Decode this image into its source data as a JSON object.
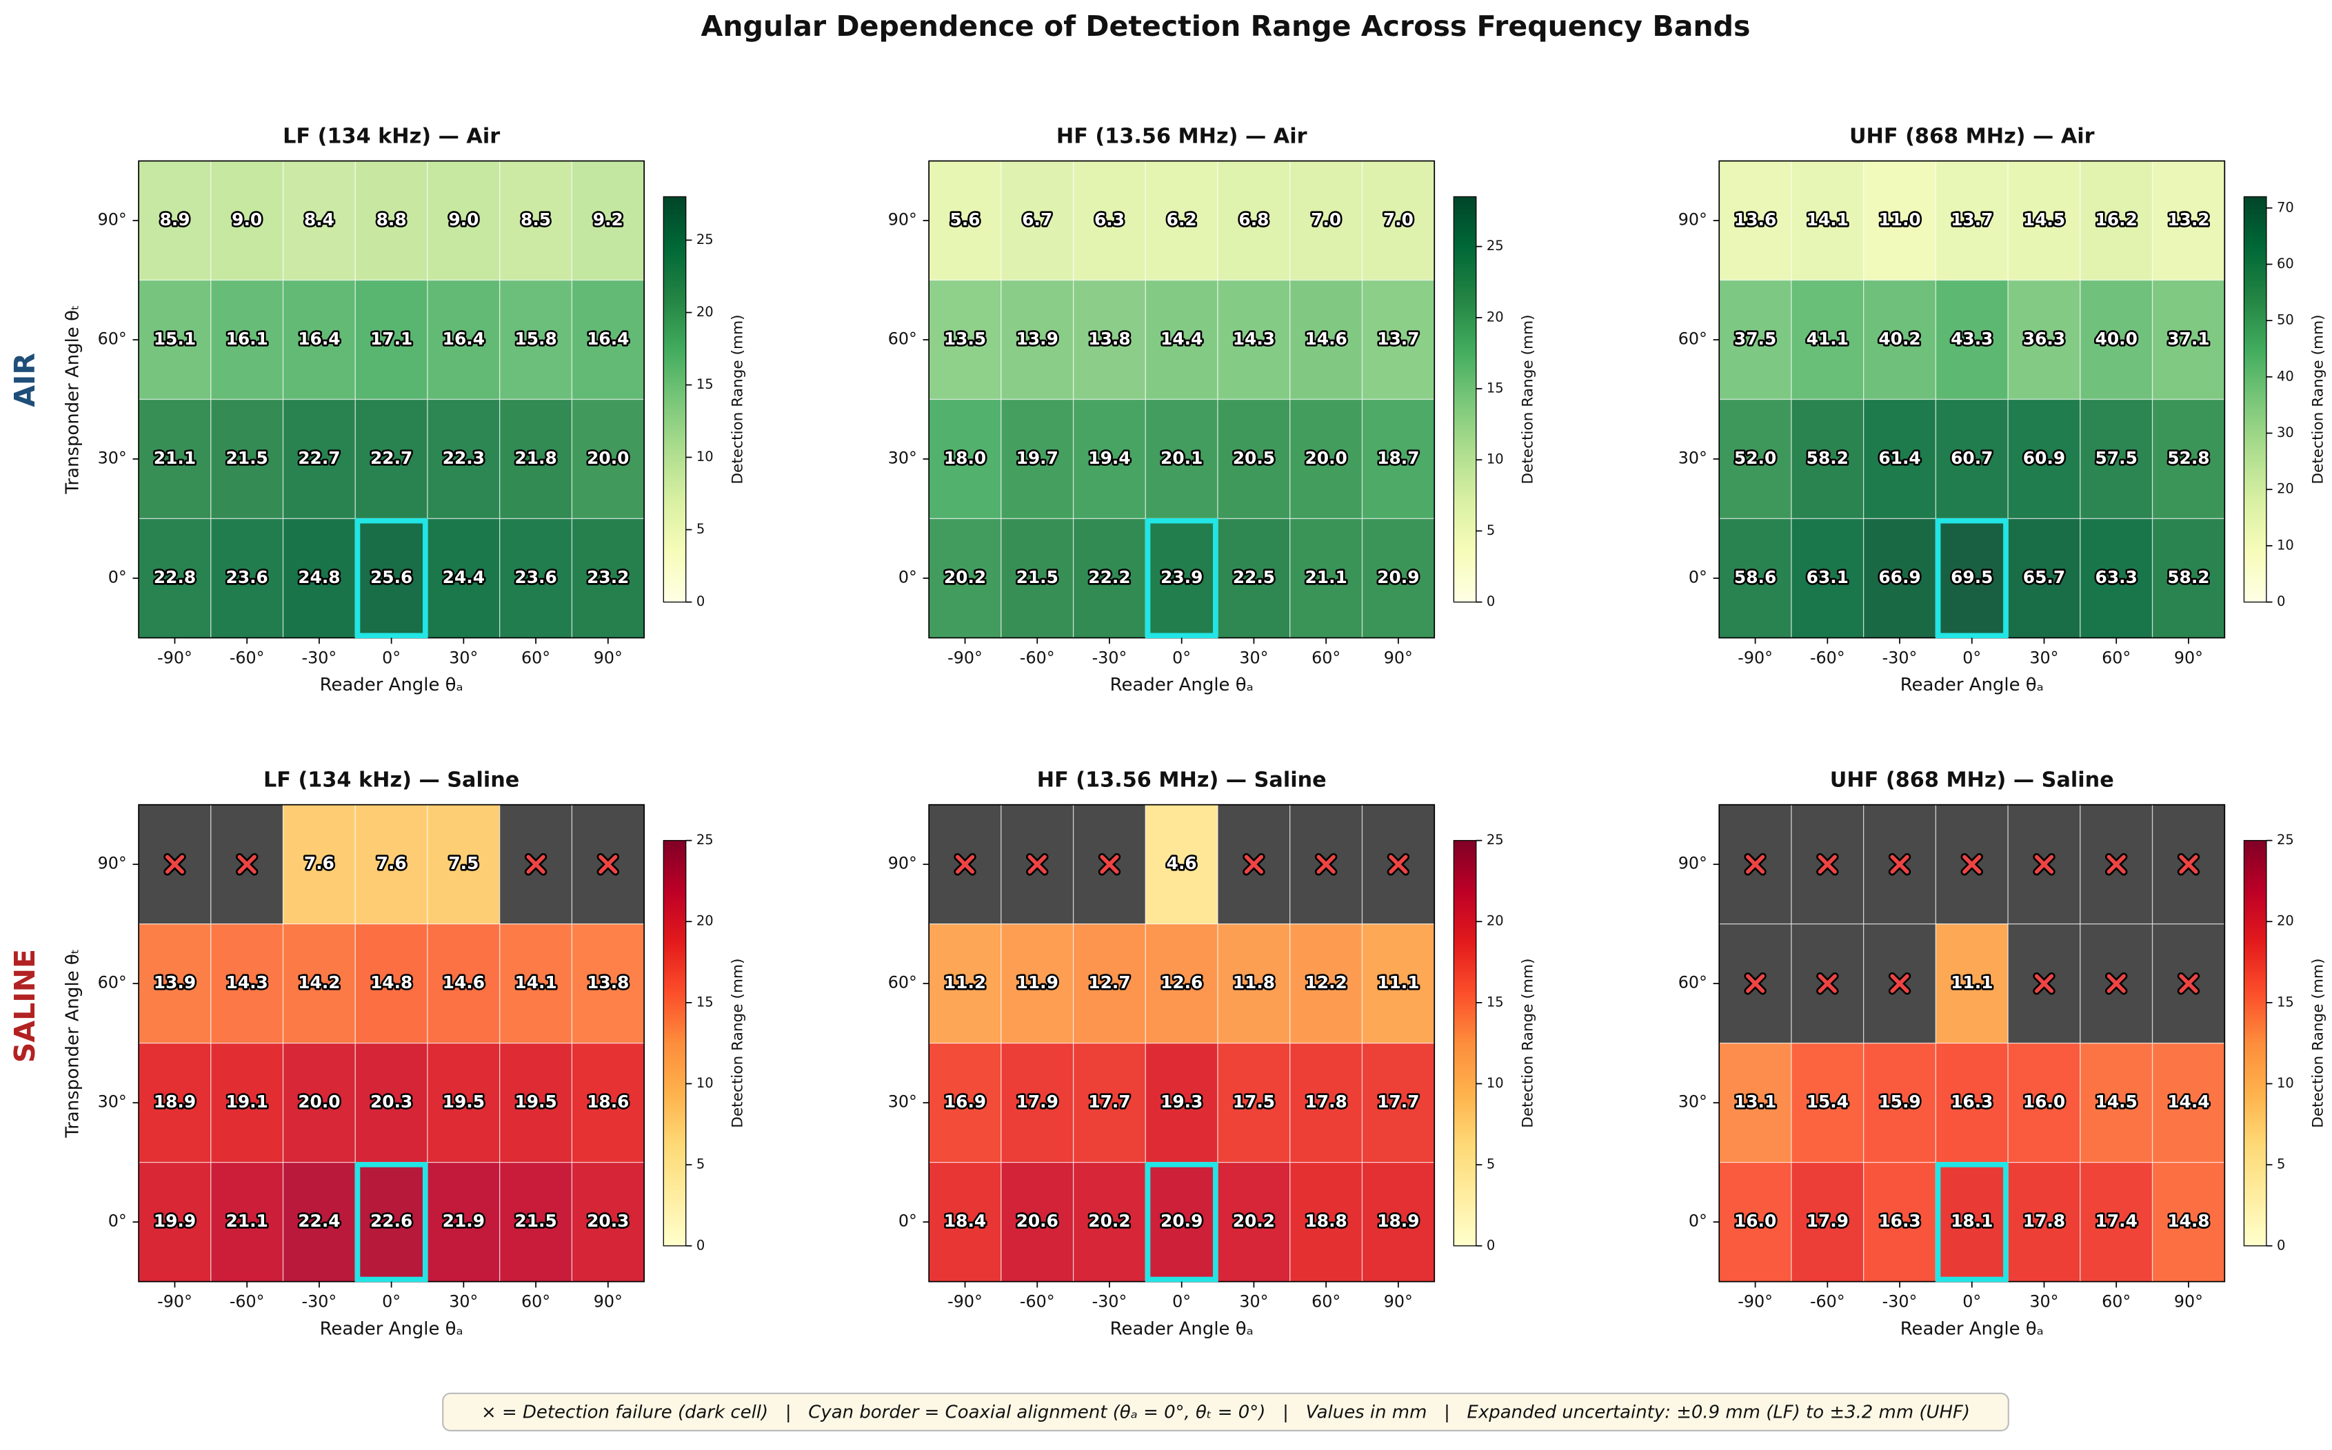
{
  "figure": {
    "title": "Angular Dependence of Detection Range Across Frequency Bands",
    "row_labels": [
      "AIR",
      "SALINE"
    ],
    "footnote": "× = Detection failure (dark cell)   |   Cyan border = Coaxial alignment (θₐ = 0°, θₜ = 0°)   |   Values in mm   |   Expanded uncertainty: ±0.9 mm (LF) to ±3.2 mm (UHF)"
  },
  "chart_data": [
    {
      "type": "heatmap",
      "title": "LF (134 kHz) — Air",
      "xlabel": "Reader Angle θₐ",
      "ylabel": "Transponder Angle θₜ",
      "x": [
        "-90°",
        "-60°",
        "-30°",
        "0°",
        "30°",
        "60°",
        "90°"
      ],
      "y": [
        "90°",
        "60°",
        "30°",
        "0°"
      ],
      "values": [
        [
          8.9,
          9.0,
          8.4,
          8.8,
          9.0,
          8.5,
          9.2
        ],
        [
          15.1,
          16.1,
          16.4,
          17.1,
          16.4,
          15.8,
          16.4
        ],
        [
          21.1,
          21.5,
          22.7,
          22.7,
          22.3,
          21.8,
          20.0
        ],
        [
          22.8,
          23.6,
          24.8,
          25.6,
          24.4,
          23.6,
          23.2
        ]
      ],
      "value_labels": [
        [
          "8.9",
          "9.0",
          "8.4",
          "8.8",
          "9.0",
          "8.5",
          "9.2"
        ],
        [
          "15.1",
          "16.1",
          "16.4",
          "17.1",
          "16.4",
          "15.8",
          "16.4"
        ],
        [
          "21.1",
          "21.5",
          "22.7",
          "22.7",
          "22.3",
          "21.8",
          "20.0"
        ],
        [
          "22.8",
          "23.6",
          "24.8",
          "25.6",
          "24.4",
          "23.6",
          "23.2"
        ]
      ],
      "colormap": "YlGn",
      "colorbar_label": "Detection Range (mm)",
      "clim": [
        0,
        28
      ],
      "cticks": [
        0,
        5,
        10,
        15,
        20,
        25
      ],
      "highlight_cell": [
        3,
        3
      ],
      "highlight_color": "#22e5e5",
      "failure_color": "#4a4a4a"
    },
    {
      "type": "heatmap",
      "title": "HF (13.56 MHz) — Air",
      "xlabel": "Reader Angle θₐ",
      "x": [
        "-90°",
        "-60°",
        "-30°",
        "0°",
        "30°",
        "60°",
        "90°"
      ],
      "y": [
        "90°",
        "60°",
        "30°",
        "0°"
      ],
      "values": [
        [
          5.6,
          6.7,
          6.3,
          6.2,
          6.8,
          7.0,
          7.0
        ],
        [
          13.5,
          13.9,
          13.8,
          14.4,
          14.3,
          14.6,
          13.7
        ],
        [
          18.0,
          19.7,
          19.4,
          20.1,
          20.5,
          20.0,
          18.7
        ],
        [
          20.2,
          21.5,
          22.2,
          23.9,
          22.5,
          21.1,
          20.9
        ]
      ],
      "value_labels": [
        [
          "5.6",
          "6.7",
          "6.3",
          "6.2",
          "6.8",
          "7.0",
          "7.0"
        ],
        [
          "13.5",
          "13.9",
          "13.8",
          "14.4",
          "14.3",
          "14.6",
          "13.7"
        ],
        [
          "18.0",
          "19.7",
          "19.4",
          "20.1",
          "20.5",
          "20.0",
          "18.7"
        ],
        [
          "20.2",
          "21.5",
          "22.2",
          "23.9",
          "22.5",
          "21.1",
          "20.9"
        ]
      ],
      "colormap": "YlGn",
      "colorbar_label": "Detection Range (mm)",
      "clim": [
        0,
        28.5
      ],
      "cticks": [
        0,
        5,
        10,
        15,
        20,
        25
      ],
      "highlight_cell": [
        3,
        3
      ],
      "highlight_color": "#22e5e5",
      "failure_color": "#4a4a4a"
    },
    {
      "type": "heatmap",
      "title": "UHF (868 MHz) — Air",
      "xlabel": "Reader Angle θₐ",
      "x": [
        "-90°",
        "-60°",
        "-30°",
        "0°",
        "30°",
        "60°",
        "90°"
      ],
      "y": [
        "90°",
        "60°",
        "30°",
        "0°"
      ],
      "values": [
        [
          13.6,
          14.1,
          11.0,
          13.7,
          14.5,
          16.2,
          13.2
        ],
        [
          37.5,
          41.1,
          40.2,
          43.3,
          36.3,
          40.0,
          37.1
        ],
        [
          52.0,
          58.2,
          61.4,
          60.7,
          60.9,
          57.5,
          52.8
        ],
        [
          58.6,
          63.1,
          66.9,
          69.5,
          65.7,
          63.3,
          58.2
        ]
      ],
      "value_labels": [
        [
          "13.6",
          "14.1",
          "11.0",
          "13.7",
          "14.5",
          "16.2",
          "13.2"
        ],
        [
          "37.5",
          "41.1",
          "40.2",
          "43.3",
          "36.3",
          "40.0",
          "37.1"
        ],
        [
          "52.0",
          "58.2",
          "61.4",
          "60.7",
          "60.9",
          "57.5",
          "52.8"
        ],
        [
          "58.6",
          "63.1",
          "66.9",
          "69.5",
          "65.7",
          "63.3",
          "58.2"
        ]
      ],
      "colormap": "YlGn",
      "colorbar_label": "Detection Range (mm)",
      "clim": [
        0,
        72
      ],
      "cticks": [
        0,
        10,
        20,
        30,
        40,
        50,
        60,
        70
      ],
      "highlight_cell": [
        3,
        3
      ],
      "highlight_color": "#22e5e5",
      "failure_color": "#4a4a4a"
    },
    {
      "type": "heatmap",
      "title": "LF (134 kHz) — Saline",
      "xlabel": "Reader Angle θₐ",
      "ylabel": "Transponder Angle θₜ",
      "x": [
        "-90°",
        "-60°",
        "-30°",
        "0°",
        "30°",
        "60°",
        "90°"
      ],
      "y": [
        "90°",
        "60°",
        "30°",
        "0°"
      ],
      "values": [
        [
          null,
          null,
          7.6,
          7.6,
          7.5,
          null,
          null
        ],
        [
          13.9,
          14.3,
          14.2,
          14.8,
          14.6,
          14.1,
          13.8
        ],
        [
          18.9,
          19.1,
          20.0,
          20.3,
          19.5,
          19.5,
          18.6
        ],
        [
          19.9,
          21.1,
          22.4,
          22.6,
          21.9,
          21.5,
          20.3
        ]
      ],
      "value_labels": [
        [
          null,
          null,
          "7.6",
          "7.6",
          "7.5",
          null,
          null
        ],
        [
          "13.9",
          "14.3",
          "14.2",
          "14.8",
          "14.6",
          "14.1",
          "13.8"
        ],
        [
          "18.9",
          "19.1",
          "20.0",
          "20.3",
          "19.5",
          "19.5",
          "18.6"
        ],
        [
          "19.9",
          "21.1",
          "22.4",
          "22.6",
          "21.9",
          "21.5",
          "20.3"
        ]
      ],
      "colormap": "YlOrRd",
      "colorbar_label": "Detection Range (mm)",
      "clim": [
        0,
        25
      ],
      "cticks": [
        0,
        5,
        10,
        15,
        20,
        25
      ],
      "highlight_cell": [
        3,
        3
      ],
      "highlight_color": "#22e5e5",
      "failure_color": "#4a4a4a"
    },
    {
      "type": "heatmap",
      "title": "HF (13.56 MHz) — Saline",
      "xlabel": "Reader Angle θₐ",
      "x": [
        "-90°",
        "-60°",
        "-30°",
        "0°",
        "30°",
        "60°",
        "90°"
      ],
      "y": [
        "90°",
        "60°",
        "30°",
        "0°"
      ],
      "values": [
        [
          null,
          null,
          null,
          4.6,
          null,
          null,
          null
        ],
        [
          11.2,
          11.9,
          12.7,
          12.6,
          11.8,
          12.2,
          11.1
        ],
        [
          16.9,
          17.9,
          17.7,
          19.3,
          17.5,
          17.8,
          17.7
        ],
        [
          18.4,
          20.6,
          20.2,
          20.9,
          20.2,
          18.8,
          18.9
        ]
      ],
      "value_labels": [
        [
          null,
          null,
          null,
          "4.6",
          null,
          null,
          null
        ],
        [
          "11.2",
          "11.9",
          "12.7",
          "12.6",
          "11.8",
          "12.2",
          "11.1"
        ],
        [
          "16.9",
          "17.9",
          "17.7",
          "19.3",
          "17.5",
          "17.8",
          "17.7"
        ],
        [
          "18.4",
          "20.6",
          "20.2",
          "20.9",
          "20.2",
          "18.8",
          "18.9"
        ]
      ],
      "colormap": "YlOrRd",
      "colorbar_label": "Detection Range (mm)",
      "clim": [
        0,
        25
      ],
      "cticks": [
        0,
        5,
        10,
        15,
        20,
        25
      ],
      "highlight_cell": [
        3,
        3
      ],
      "highlight_color": "#22e5e5",
      "failure_color": "#4a4a4a"
    },
    {
      "type": "heatmap",
      "title": "UHF (868 MHz) — Saline",
      "xlabel": "Reader Angle θₐ",
      "x": [
        "-90°",
        "-60°",
        "-30°",
        "0°",
        "30°",
        "60°",
        "90°"
      ],
      "y": [
        "90°",
        "60°",
        "30°",
        "0°"
      ],
      "values": [
        [
          null,
          null,
          null,
          null,
          null,
          null,
          null
        ],
        [
          null,
          null,
          null,
          11.1,
          null,
          null,
          null
        ],
        [
          13.1,
          15.4,
          15.9,
          16.3,
          16.0,
          14.5,
          14.4
        ],
        [
          16.0,
          17.9,
          16.3,
          18.1,
          17.8,
          17.4,
          14.8
        ]
      ],
      "value_labels": [
        [
          null,
          null,
          null,
          null,
          null,
          null,
          null
        ],
        [
          null,
          null,
          null,
          "11.1",
          null,
          null,
          null
        ],
        [
          "13.1",
          "15.4",
          "15.9",
          "16.3",
          "16.0",
          "14.5",
          "14.4"
        ],
        [
          "16.0",
          "17.9",
          "16.3",
          "18.1",
          "17.8",
          "17.4",
          "14.8"
        ]
      ],
      "colormap": "YlOrRd",
      "colorbar_label": "Detection Range (mm)",
      "clim": [
        0,
        25
      ],
      "cticks": [
        0,
        5,
        10,
        15,
        20,
        25
      ],
      "highlight_cell": [
        3,
        3
      ],
      "highlight_color": "#22e5e5",
      "failure_color": "#4a4a4a"
    }
  ]
}
